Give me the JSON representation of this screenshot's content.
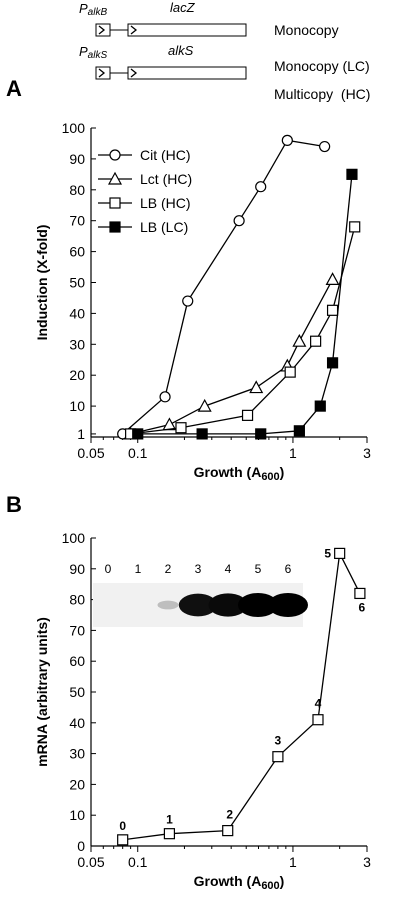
{
  "schematic": {
    "constructs": [
      {
        "promoter": "P",
        "promoter_sub": "alkB",
        "gene": "lacZ"
      },
      {
        "promoter": "P",
        "promoter_sub": "alkS",
        "gene": "alkS"
      }
    ],
    "copy_labels": [
      "Monocopy",
      "Monocopy (LC)",
      "Multicopy  (HC)"
    ]
  },
  "chart_data": [
    {
      "panel": "A",
      "type": "line",
      "xscale": "log",
      "xlim": [
        0.05,
        3
      ],
      "ylim": [
        0,
        100
      ],
      "xticks": [
        "0.05",
        "0.1",
        "1",
        "3"
      ],
      "yticks": [
        "1",
        "10",
        "20",
        "30",
        "40",
        "50",
        "60",
        "70",
        "80",
        "90",
        "100"
      ],
      "xlabel": "Growth (A",
      "xlabel_sub": "600",
      "xlabel_end": ")",
      "ylabel": "Induction (X-fold)",
      "legend_position": "top-left",
      "series": [
        {
          "name": "Cit (HC)",
          "marker": "circle-open",
          "x": [
            0.08,
            0.15,
            0.21,
            0.45,
            0.62,
            0.92,
            1.6
          ],
          "y": [
            1,
            13,
            44,
            70,
            81,
            96,
            94
          ]
        },
        {
          "name": "Lct (HC)",
          "marker": "triangle-open",
          "x": [
            0.09,
            0.16,
            0.27,
            0.58,
            0.92,
            1.1,
            1.8
          ],
          "y": [
            1,
            4,
            10,
            16,
            23,
            31,
            51
          ]
        },
        {
          "name": "LB (HC)",
          "marker": "square-open",
          "x": [
            0.09,
            0.19,
            0.51,
            0.96,
            1.4,
            1.8,
            2.5
          ],
          "y": [
            1,
            3,
            7,
            21,
            31,
            41,
            68
          ]
        },
        {
          "name": "LB (LC)",
          "marker": "square-filled",
          "x": [
            0.1,
            0.26,
            0.62,
            1.1,
            1.5,
            1.8,
            2.4
          ],
          "y": [
            1,
            1,
            1,
            2,
            10,
            24,
            85
          ]
        }
      ]
    },
    {
      "panel": "B",
      "type": "line",
      "xscale": "log",
      "xlim": [
        0.05,
        3
      ],
      "ylim": [
        0,
        100
      ],
      "xticks": [
        "0.05",
        "0.1",
        "1",
        "3"
      ],
      "yticks": [
        "0",
        "10",
        "20",
        "30",
        "40",
        "50",
        "60",
        "70",
        "80",
        "90",
        "100"
      ],
      "xlabel": "Growth (A",
      "xlabel_sub": "600",
      "xlabel_end": ")",
      "ylabel": "mRNA (arbitrary units)",
      "series": [
        {
          "marker": "square-open",
          "x": [
            0.08,
            0.16,
            0.38,
            0.8,
            1.45,
            2.0,
            2.7
          ],
          "y": [
            2,
            4,
            5,
            29,
            41,
            95,
            82
          ],
          "point_labels": [
            "0",
            "1",
            "2",
            "3",
            "4",
            "5",
            "6"
          ]
        }
      ],
      "inset_blot": {
        "lane_labels": [
          "0",
          "1",
          "2",
          "3",
          "4",
          "5",
          "6"
        ],
        "band_intensity": [
          0,
          0,
          0.05,
          0.92,
          0.95,
          1.0,
          1.0
        ]
      }
    }
  ]
}
